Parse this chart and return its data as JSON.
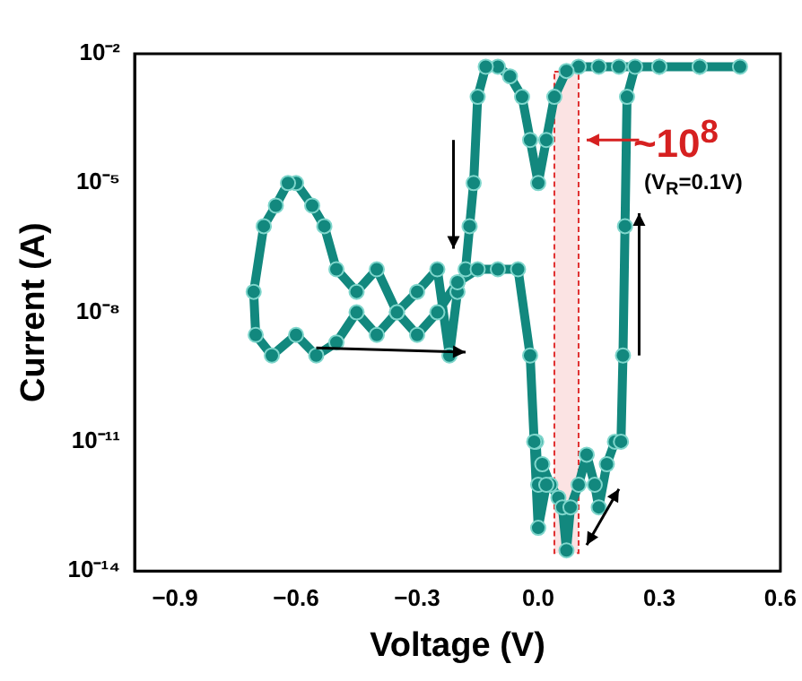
{
  "chart_data": {
    "type": "line",
    "xlabel": "Voltage (V)",
    "ylabel": "Current (A)",
    "log": "y",
    "grid": false,
    "legend": false,
    "marker": "circle",
    "line_style": "solid",
    "xlim": [
      -1.0,
      0.6
    ],
    "xticks": [
      {
        "value": -0.9,
        "label": "−0.9"
      },
      {
        "value": -0.6,
        "label": "−0.6"
      },
      {
        "value": -0.3,
        "label": "−0.3"
      },
      {
        "value": 0,
        "label": "0.0"
      },
      {
        "value": 0.3,
        "label": "0.3"
      },
      {
        "value": 0.6,
        "label": "0.6"
      }
    ],
    "ylim": [
      1e-14,
      0.01
    ],
    "yticks": [
      {
        "value": 1e-14,
        "label": "10⁻¹⁴"
      },
      {
        "value": 1e-11,
        "label": "10⁻¹¹"
      },
      {
        "value": 1e-08,
        "label": "10⁻⁸"
      },
      {
        "value": 1e-05,
        "label": "10⁻⁵"
      },
      {
        "value": 0.01,
        "label": "10⁻²"
      }
    ],
    "bands": [
      {
        "axis": "x",
        "from": 0.04,
        "to": 0.1,
        "color": "#e03030"
      }
    ],
    "annotations": [
      "~10$^{8}$",
      "(V$_{R}$=0.1V)"
    ],
    "series": [
      {
        "color": "#12887e",
        "x": [
          -0.005,
          0.0,
          0.01,
          0.03,
          0.05,
          0.06,
          0.07,
          0.08,
          0.1,
          0.12,
          0.14,
          0.15,
          0.17,
          0.19,
          0.205,
          0.21,
          0.215,
          0.22,
          0.24,
          0.3,
          0.4,
          0.5,
          0.4,
          0.3,
          0.2,
          0.15,
          0.1,
          0.07,
          0.04,
          0.02,
          0.0,
          -0.02,
          -0.04,
          -0.07,
          -0.1,
          -0.13,
          -0.15,
          -0.16,
          -0.17,
          -0.18,
          -0.2,
          -0.22,
          -0.25,
          -0.3,
          -0.35,
          -0.4,
          -0.45,
          -0.5,
          -0.53,
          -0.56,
          -0.6,
          -0.62,
          -0.65,
          -0.68,
          -0.705,
          -0.7,
          -0.66,
          -0.6,
          -0.55,
          -0.5,
          -0.45,
          -0.4,
          -0.35,
          -0.3,
          -0.25,
          -0.2,
          -0.15,
          -0.1,
          -0.05,
          -0.02,
          -0.01,
          0.0,
          0.02
        ],
        "values": [
          1e-11,
          1e-12,
          3e-12,
          1e-12,
          5e-13,
          3e-13,
          3e-14,
          3e-13,
          1e-12,
          5e-12,
          1e-12,
          3e-13,
          3e-12,
          1e-11,
          1e-11,
          1e-09,
          1e-06,
          0.001,
          0.005,
          0.005,
          0.005,
          0.005,
          0.005,
          0.005,
          0.005,
          0.005,
          0.005,
          0.004,
          0.001,
          0.0001,
          1e-05,
          0.0001,
          0.001,
          0.003,
          0.005,
          0.005,
          0.001,
          1e-05,
          1e-06,
          1e-07,
          3e-08,
          1e-09,
          1e-07,
          3e-08,
          1e-08,
          1e-07,
          3e-08,
          1e-07,
          1e-06,
          3e-06,
          1e-05,
          1e-05,
          3e-06,
          1e-06,
          3e-08,
          3e-09,
          1e-09,
          3e-09,
          1e-09,
          2e-09,
          1e-08,
          3e-09,
          1e-08,
          3e-09,
          1e-08,
          5e-08,
          1e-07,
          1e-07,
          1e-07,
          1e-09,
          1e-11,
          1e-13,
          1e-12
        ]
      }
    ]
  }
}
